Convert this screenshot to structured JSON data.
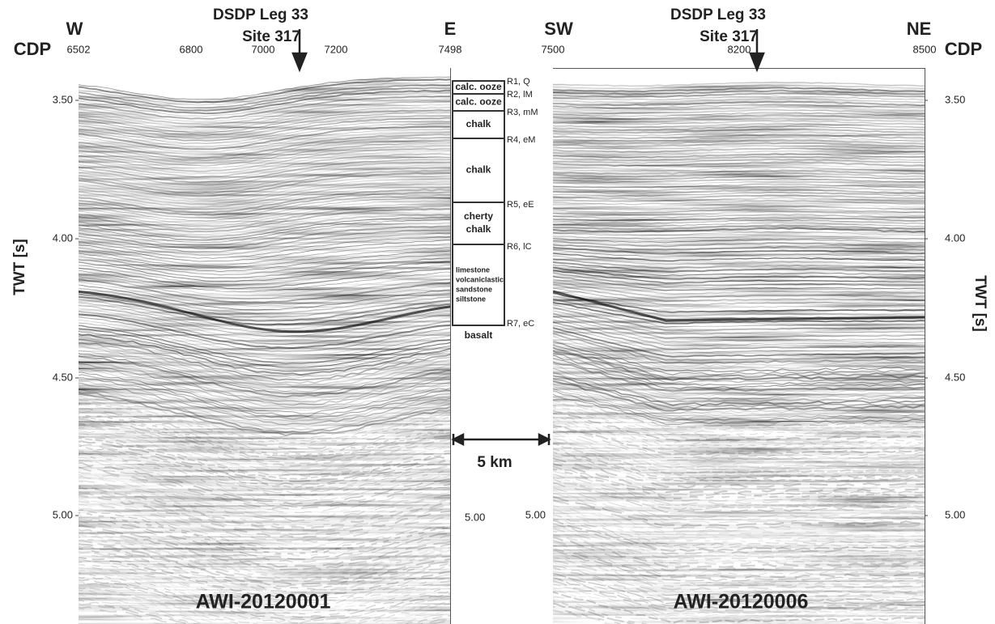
{
  "left": {
    "cdp_label": "CDP",
    "west": "W",
    "east": "E",
    "cdp_ticks": [
      "6502",
      "6800",
      "7000",
      "7200",
      "7498"
    ],
    "site": [
      "DSDP Leg 33",
      "Site 317"
    ],
    "yticks": [
      "3.50",
      "4.00",
      "4.50",
      "5.00"
    ],
    "yticks_right": [
      "5.00"
    ],
    "axis_label": "TWT [s]",
    "profile": "AWI-20120001"
  },
  "right": {
    "cdp_label": "CDP",
    "west": "SW",
    "east": "NE",
    "cdp_ticks": [
      "7500",
      "8200",
      "8500"
    ],
    "site": [
      "DSDP Leg 33",
      "Site 317"
    ],
    "yticks": [
      "3.50",
      "4.00",
      "4.50",
      "5.00"
    ],
    "yticks_left": [
      "5.00"
    ],
    "axis_label": "TWT [s]",
    "profile": "AWI-20120006"
  },
  "stratigraphy": {
    "units": [
      [
        "calc. ooze"
      ],
      [
        "calc. ooze"
      ],
      [
        "chalk"
      ],
      [
        "chalk"
      ],
      [
        "cherty",
        "chalk"
      ],
      [
        "limestone",
        "volcaniclastic",
        "sandstone",
        "siltstone"
      ]
    ],
    "below": "basalt",
    "reflectors": [
      "R1, Q",
      "R2, lM",
      "R3, mM",
      "R4, eM",
      "R5, eE",
      "R6, lC",
      "R7, eC"
    ]
  },
  "scale_bar": "5 km"
}
